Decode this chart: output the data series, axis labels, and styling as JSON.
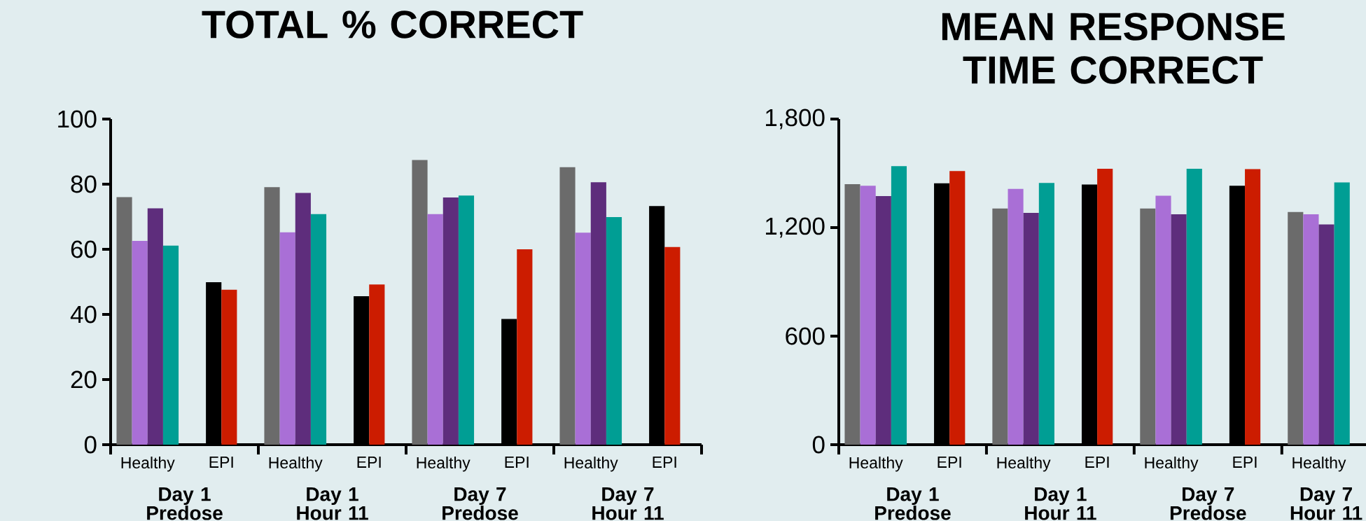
{
  "chart_data": [
    {
      "type": "bar",
      "title": "TOTAL % CORRECT",
      "categories": [
        "Healthy",
        "EPI",
        "Healthy",
        "EPI",
        "Healthy",
        "EPI",
        "Healthy",
        "EPI"
      ],
      "series": [
        {
          "color": "#6b6b6b",
          "values": [
            76.0,
            null,
            79.1,
            null,
            87.4,
            null,
            85.2,
            null
          ]
        },
        {
          "color": "#a96fd6",
          "values": [
            62.6,
            null,
            65.2,
            null,
            70.8,
            null,
            65.1,
            null
          ]
        },
        {
          "color": "#5e2d7c",
          "values": [
            72.6,
            null,
            77.3,
            null,
            75.9,
            null,
            80.6,
            null
          ]
        },
        {
          "color": "#009e94",
          "values": [
            61.1,
            null,
            70.8,
            null,
            76.5,
            null,
            69.9,
            null
          ]
        },
        {
          "color": "#000000",
          "values": [
            null,
            49.9,
            null,
            45.6,
            null,
            38.6,
            null,
            73.3
          ]
        },
        {
          "color": "#cc1c00",
          "values": [
            null,
            47.6,
            null,
            49.2,
            null,
            60.0,
            null,
            60.7
          ]
        }
      ],
      "annotations": [
        "Day 1 Predose",
        "Day 1 Hour 11",
        "Day 7 Predose",
        "Day 7 Hour 11"
      ],
      "ylim": [
        0,
        100
      ],
      "yticks": [
        0,
        20,
        40,
        60,
        80,
        100
      ],
      "grid": false
    },
    {
      "type": "bar",
      "title": "MEAN RESPONSE TIME CORRECT",
      "categories": [
        "Healthy",
        "EPI",
        "Healthy",
        "EPI",
        "Healthy",
        "EPI",
        "Healthy"
      ],
      "series": [
        {
          "color": "#6b6b6b",
          "values": [
            1440,
            null,
            1305,
            null,
            1305,
            null,
            1286
          ]
        },
        {
          "color": "#a96fd6",
          "values": [
            1431,
            null,
            1414,
            null,
            1376,
            null,
            1274
          ]
        },
        {
          "color": "#5e2d7c",
          "values": [
            1374,
            null,
            1281,
            null,
            1274,
            null,
            1217
          ]
        },
        {
          "color": "#009e94",
          "values": [
            1540,
            null,
            1447,
            null,
            1525,
            null,
            1450
          ]
        },
        {
          "color": "#000000",
          "values": [
            null,
            1445,
            null,
            1438,
            null,
            1431,
            null
          ]
        },
        {
          "color": "#cc1c00",
          "values": [
            null,
            1513,
            null,
            1525,
            null,
            1523,
            null
          ]
        }
      ],
      "annotations": [
        "Day 1 Predose",
        "Day 1 Hour 11",
        "Day 7 Predose",
        "Day 7 Hour 11"
      ],
      "ylim": [
        0,
        1800
      ],
      "yticks": [
        0,
        {
          "value": 600,
          "label": "600"
        },
        {
          "value": 1200,
          "label": "1,200"
        },
        {
          "value": 1800,
          "label": "1,800"
        }
      ],
      "grid": false
    }
  ]
}
